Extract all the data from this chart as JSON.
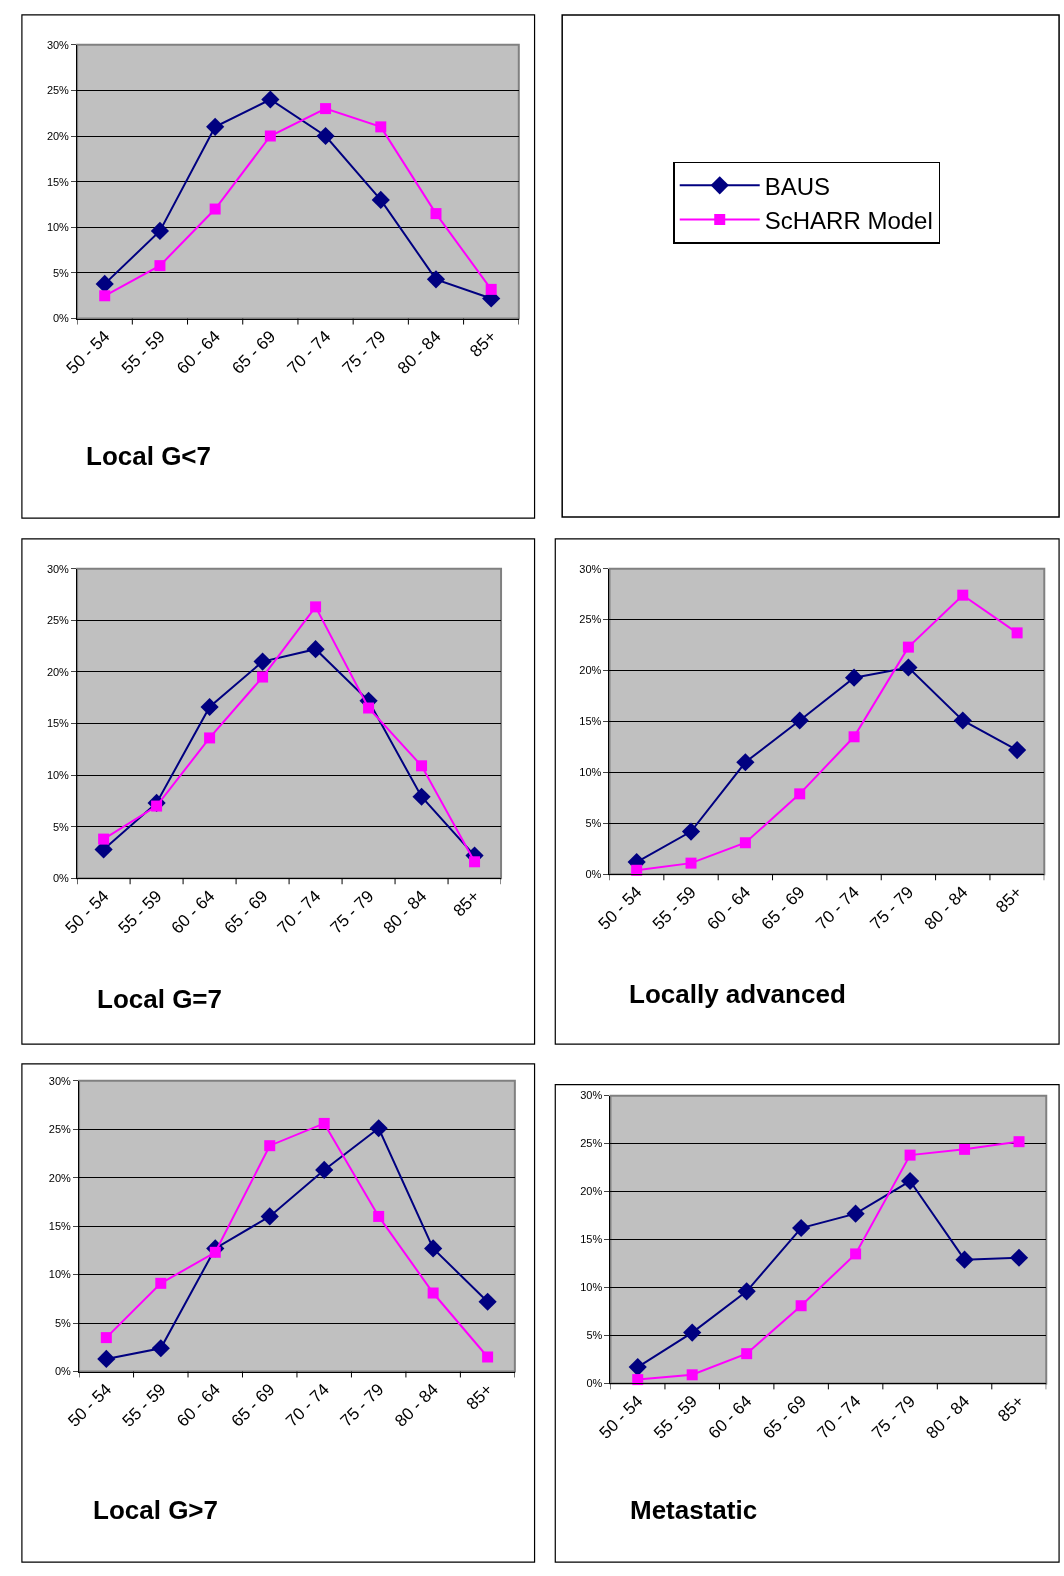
{
  "chart_data": [
    {
      "type": "line",
      "title": "Local G<7",
      "categories": [
        "50 - 54",
        "55 - 59",
        "60 - 64",
        "65 - 69",
        "70 - 74",
        "75 - 79",
        "80 - 84",
        "85+"
      ],
      "ylim": [
        0,
        30
      ],
      "yticks": [
        {
          "value": 0,
          "label": "0%"
        },
        {
          "value": 5,
          "label": "5%"
        },
        {
          "value": 10,
          "label": "10%"
        },
        {
          "value": 15,
          "label": "15%"
        },
        {
          "value": 20,
          "label": "20%"
        },
        {
          "value": 25,
          "label": "25%"
        },
        {
          "value": 30,
          "label": "30%"
        }
      ],
      "grid": "y",
      "legend": "right",
      "series": [
        {
          "name": "BAUS",
          "color": "#000080",
          "marker": "diamond",
          "values": [
            3.8,
            9.6,
            21,
            24,
            20,
            13,
            4.3,
            2.2
          ]
        },
        {
          "name": "ScHARR Model",
          "color": "#ff00ff",
          "marker": "square",
          "values": [
            2.5,
            5.8,
            12,
            20,
            23,
            21,
            11.5,
            3.2
          ]
        }
      ]
    },
    {
      "type": "line",
      "title": "Local G=7",
      "categories": [
        "50 - 54",
        "55 - 59",
        "60 - 64",
        "65 - 69",
        "70 - 74",
        "75 - 79",
        "80 - 84",
        "85+"
      ],
      "ylim": [
        0,
        30
      ],
      "yticks": [
        {
          "value": 0,
          "label": "0%"
        },
        {
          "value": 5,
          "label": "5%"
        },
        {
          "value": 10,
          "label": "10%"
        },
        {
          "value": 15,
          "label": "15%"
        },
        {
          "value": 20,
          "label": "20%"
        },
        {
          "value": 25,
          "label": "25%"
        },
        {
          "value": 30,
          "label": "30%"
        }
      ],
      "grid": "y",
      "series": [
        {
          "color": "#000080",
          "marker": "diamond",
          "values": [
            2.8,
            7.3,
            16.6,
            21,
            22.2,
            17.2,
            7.9,
            2.2
          ]
        },
        {
          "color": "#ff00ff",
          "marker": "square",
          "values": [
            3.8,
            7,
            13.6,
            19.5,
            26.3,
            16.5,
            10.9,
            1.6
          ]
        }
      ]
    },
    {
      "type": "line",
      "title": "Locally advanced",
      "categories": [
        "50 - 54",
        "55 - 59",
        "60 - 64",
        "65 - 69",
        "70 - 74",
        "75 - 79",
        "80 - 84",
        "85+"
      ],
      "ylim": [
        0,
        30
      ],
      "yticks": [
        {
          "value": 0,
          "label": "0%"
        },
        {
          "value": 5,
          "label": "5%"
        },
        {
          "value": 10,
          "label": "10%"
        },
        {
          "value": 15,
          "label": "15%"
        },
        {
          "value": 20,
          "label": "20%"
        },
        {
          "value": 25,
          "label": "25%"
        },
        {
          "value": 30,
          "label": "30%"
        }
      ],
      "grid": "y",
      "series": [
        {
          "color": "#000080",
          "marker": "diamond",
          "values": [
            1.2,
            4.2,
            11,
            15.1,
            19.3,
            20.3,
            15.1,
            12.2
          ]
        },
        {
          "color": "#ff00ff",
          "marker": "square",
          "values": [
            0.4,
            1.1,
            3.1,
            7.9,
            13.5,
            22.3,
            27.4,
            23.7
          ]
        }
      ]
    },
    {
      "type": "line",
      "title": "Local G>7",
      "categories": [
        "50 - 54",
        "55 - 59",
        "60 - 64",
        "65 - 69",
        "70 - 74",
        "75 - 79",
        "80 - 84",
        "85+"
      ],
      "ylim": [
        0,
        30
      ],
      "yticks": [
        {
          "value": 0,
          "label": "0%"
        },
        {
          "value": 5,
          "label": "5%"
        },
        {
          "value": 10,
          "label": "10%"
        },
        {
          "value": 15,
          "label": "15%"
        },
        {
          "value": 20,
          "label": "20%"
        },
        {
          "value": 25,
          "label": "25%"
        },
        {
          "value": 30,
          "label": "30%"
        }
      ],
      "grid": "y",
      "series": [
        {
          "color": "#000080",
          "marker": "diamond",
          "values": [
            1.3,
            2.4,
            12.7,
            16,
            20.8,
            25.1,
            12.7,
            7.2
          ]
        },
        {
          "color": "#ff00ff",
          "marker": "square",
          "values": [
            3.5,
            9.1,
            12.3,
            23.3,
            25.6,
            16,
            8.1,
            1.5
          ]
        }
      ]
    },
    {
      "type": "line",
      "title": "Metastatic",
      "categories": [
        "50 - 54",
        "55 - 59",
        "60 - 64",
        "65 - 69",
        "70 - 74",
        "75 - 79",
        "80 - 84",
        "85+"
      ],
      "ylim": [
        0,
        30
      ],
      "yticks": [
        {
          "value": 0,
          "label": "0%"
        },
        {
          "value": 5,
          "label": "5%"
        },
        {
          "value": 10,
          "label": "10%"
        },
        {
          "value": 15,
          "label": "15%"
        },
        {
          "value": 20,
          "label": "20%"
        },
        {
          "value": 25,
          "label": "25%"
        },
        {
          "value": 30,
          "label": "30%"
        }
      ],
      "grid": "y",
      "series": [
        {
          "color": "#000080",
          "marker": "diamond",
          "values": [
            1.7,
            5.3,
            9.6,
            16.2,
            17.7,
            21.1,
            12.9,
            13.1
          ]
        },
        {
          "color": "#ff00ff",
          "marker": "square",
          "values": [
            0.4,
            0.9,
            3.1,
            8.1,
            13.5,
            23.8,
            24.4,
            25.2
          ]
        }
      ]
    }
  ]
}
